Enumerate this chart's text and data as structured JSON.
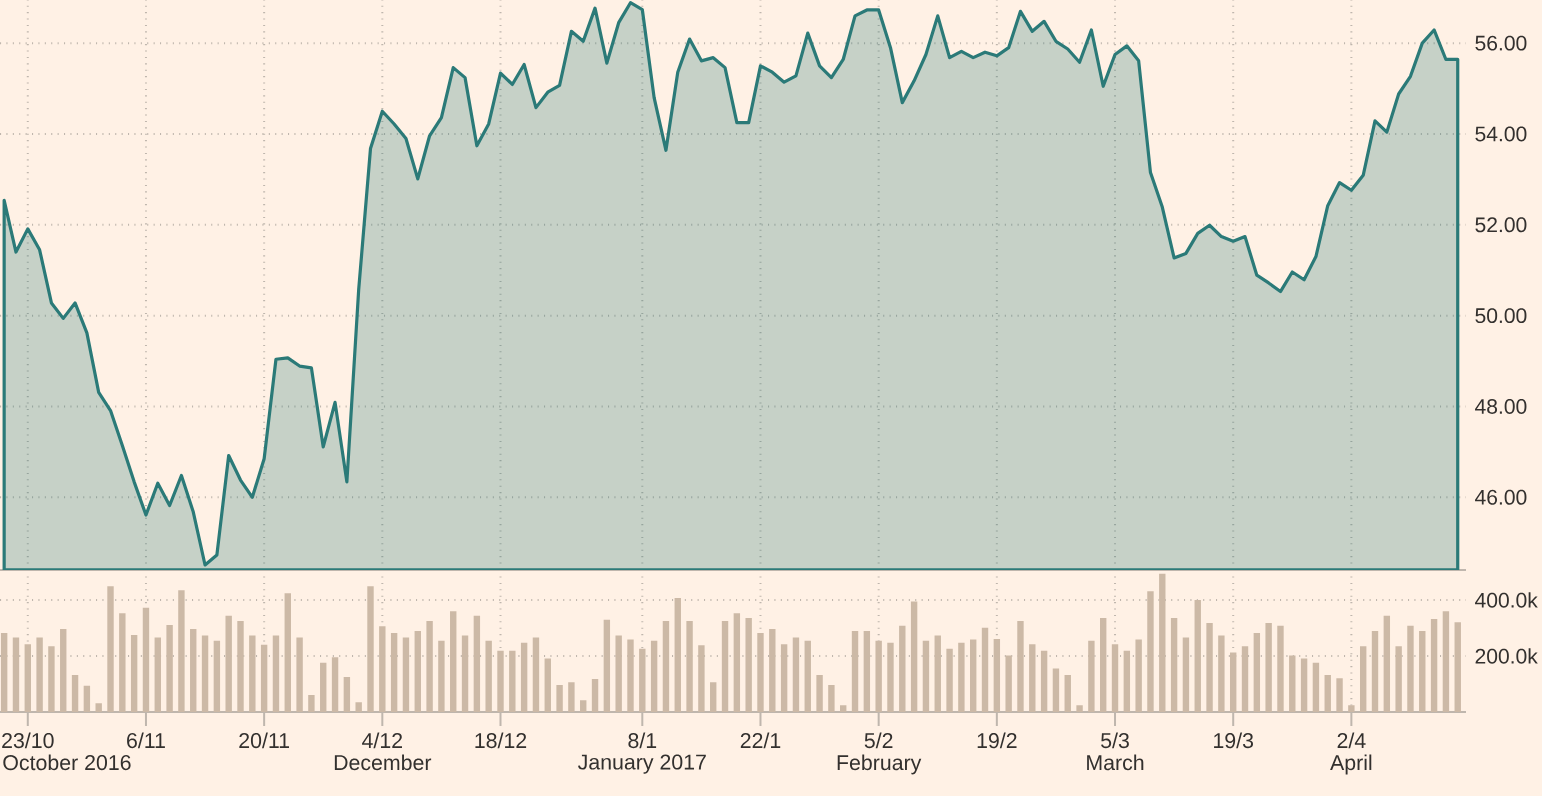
{
  "chart_data": [
    {
      "type": "area",
      "color": "#2b7a78",
      "grid": true,
      "tick_labels": "y",
      "ylim": [
        44.4,
        56.95
      ],
      "yticks": [
        {
          "value": 46,
          "label": "46.00"
        },
        {
          "value": 48,
          "label": "48.00"
        },
        {
          "value": 50,
          "label": "50.00"
        },
        {
          "value": 52,
          "label": "52.00"
        },
        {
          "value": 54,
          "label": "54.00"
        },
        {
          "value": 56,
          "label": "56.00"
        }
      ],
      "categories": [
        null,
        null,
        null,
        null,
        null,
        null,
        null,
        null,
        null,
        null,
        null,
        null,
        null,
        null,
        null,
        null,
        null,
        null,
        null,
        null,
        null,
        null,
        null,
        null,
        null,
        null,
        null,
        null,
        null,
        null,
        null,
        null,
        null,
        null,
        null,
        null,
        null,
        null,
        null,
        null,
        null,
        null,
        null,
        null,
        null,
        null,
        null,
        null,
        null,
        null,
        null,
        null,
        null,
        null,
        null,
        null,
        null,
        null,
        null,
        null,
        null,
        null,
        null,
        null,
        null,
        null,
        null,
        null,
        null,
        null,
        null,
        null,
        null,
        null,
        null,
        null,
        null,
        null,
        null,
        null,
        null,
        null,
        null,
        null,
        null,
        null,
        null,
        null,
        null,
        null,
        null,
        null,
        null,
        null,
        null,
        null,
        null,
        null,
        null,
        null,
        null,
        null,
        null,
        null,
        null,
        null,
        null,
        null,
        null,
        null,
        null,
        null,
        null,
        null,
        null,
        null,
        null,
        null,
        null,
        null,
        null,
        null,
        null,
        null
      ],
      "values": [
        52.54,
        51.4,
        51.91,
        51.45,
        50.28,
        49.94,
        50.28,
        49.62,
        48.31,
        47.91,
        47.14,
        46.34,
        45.61,
        46.31,
        45.82,
        46.48,
        45.68,
        44.51,
        44.73,
        46.92,
        46.38,
        46.0,
        46.85,
        49.04,
        49.07,
        48.89,
        48.85,
        47.11,
        48.09,
        46.34,
        50.57,
        53.68,
        54.5,
        54.22,
        53.9,
        53.01,
        53.96,
        54.36,
        55.46,
        55.24,
        53.74,
        54.22,
        55.34,
        55.09,
        55.53,
        54.58,
        54.92,
        55.07,
        56.26,
        56.04,
        56.77,
        55.56,
        56.45,
        56.89,
        56.74,
        54.8,
        53.64,
        55.36,
        56.09,
        55.61,
        55.68,
        55.46,
        54.25,
        54.25,
        55.5,
        55.36,
        55.14,
        55.28,
        56.22,
        55.5,
        55.24,
        55.64,
        56.6,
        56.73,
        56.73,
        55.9,
        54.69,
        55.17,
        55.75,
        56.6,
        55.68,
        55.82,
        55.68,
        55.8,
        55.72,
        55.9,
        56.7,
        56.26,
        56.48,
        56.04,
        55.87,
        55.58,
        56.29,
        55.05,
        55.75,
        55.94,
        55.61,
        53.15,
        52.39,
        51.27,
        51.37,
        51.81,
        51.99,
        51.74,
        51.64,
        51.74,
        50.89,
        50.72,
        50.53,
        50.96,
        50.79,
        51.3,
        52.42,
        52.93,
        52.76,
        53.09,
        54.29,
        54.04,
        54.88,
        55.27,
        56.0,
        56.29,
        55.64,
        55.64
      ]
    },
    {
      "type": "bar",
      "color": "#ccb9a6",
      "grid": true,
      "ylim": [
        0,
        500000
      ],
      "yticks": [
        {
          "value": 200000,
          "label": "200.0k"
        },
        {
          "value": 400000,
          "label": "400.0k"
        }
      ],
      "annotations": [
        "October 2016",
        "December",
        "January 2017",
        "February",
        "March",
        "April"
      ],
      "categories": [
        null,
        null,
        "23/10",
        null,
        null,
        null,
        null,
        null,
        null,
        null,
        null,
        null,
        "6/11",
        null,
        null,
        null,
        null,
        null,
        null,
        null,
        null,
        null,
        "20/11",
        null,
        null,
        null,
        null,
        null,
        null,
        null,
        null,
        null,
        "4/12",
        null,
        null,
        null,
        null,
        null,
        null,
        null,
        null,
        null,
        "18/12",
        null,
        null,
        null,
        null,
        null,
        null,
        null,
        null,
        null,
        null,
        null,
        "8/1",
        null,
        null,
        null,
        null,
        null,
        null,
        null,
        null,
        null,
        "22/1",
        null,
        null,
        null,
        null,
        null,
        null,
        null,
        null,
        null,
        "5/2",
        null,
        null,
        null,
        null,
        null,
        null,
        null,
        null,
        null,
        "19/2",
        null,
        null,
        null,
        null,
        null,
        null,
        null,
        null,
        null,
        "5/3",
        null,
        null,
        null,
        null,
        null,
        null,
        null,
        null,
        null,
        "19/3",
        null,
        null,
        null,
        null,
        null,
        null,
        null,
        null,
        null,
        "2/4",
        null,
        null,
        null,
        null,
        null,
        null,
        null,
        null,
        null
      ],
      "values": [
        282000,
        266000,
        242000,
        266000,
        235000,
        296000,
        132000,
        94000,
        31000,
        449000,
        353000,
        275000,
        372000,
        266000,
        311000,
        435000,
        296000,
        273000,
        254000,
        344000,
        325000,
        273000,
        240000,
        273000,
        424000,
        266000,
        61000,
        176000,
        195000,
        125000,
        35000,
        449000,
        306000,
        282000,
        266000,
        289000,
        325000,
        254000,
        360000,
        273000,
        344000,
        254000,
        219000,
        219000,
        247000,
        266000,
        191000,
        96000,
        106000,
        42000,
        118000,
        329000,
        273000,
        259000,
        226000,
        254000,
        325000,
        407000,
        325000,
        238000,
        106000,
        325000,
        353000,
        336000,
        282000,
        296000,
        242000,
        266000,
        254000,
        132000,
        96000,
        24000,
        289000,
        289000,
        254000,
        247000,
        308000,
        395000,
        254000,
        273000,
        226000,
        247000,
        259000,
        301000,
        261000,
        202000,
        325000,
        242000,
        219000,
        155000,
        132000,
        24000,
        254000,
        336000,
        242000,
        219000,
        259000,
        431000,
        494000,
        336000,
        266000,
        400000,
        318000,
        273000,
        212000,
        235000,
        282000,
        318000,
        308000,
        202000,
        191000,
        176000,
        132000,
        120000,
        24000,
        235000,
        289000,
        344000,
        235000,
        308000,
        289000,
        332000,
        360000,
        320000
      ]
    }
  ]
}
